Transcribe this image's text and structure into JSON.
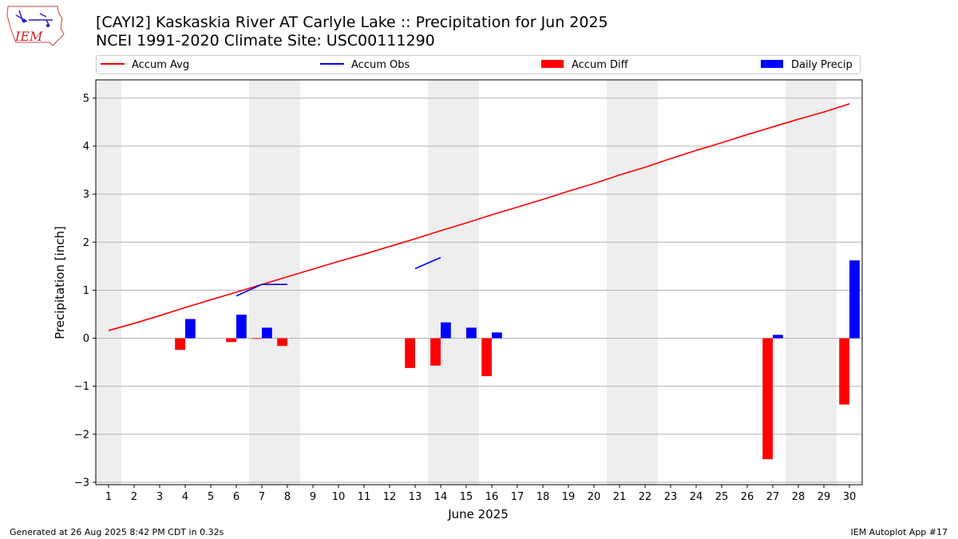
{
  "header": {
    "title_line1": "[CAYI2] Kaskaskia River  AT Carlyle Lake :: Precipitation for Jun 2025",
    "title_line2": "NCEI 1991-2020 Climate Site: USC00111290",
    "logo_text": "IEM"
  },
  "footer": {
    "left": "Generated at 26 Aug 2025 8:42 PM CDT in 0.32s",
    "right": "IEM Autoplot App #17"
  },
  "legend": [
    {
      "label": "Accum Avg",
      "kind": "line",
      "color": "#ff0000"
    },
    {
      "label": "Accum Obs",
      "kind": "line",
      "color": "#0000ff"
    },
    {
      "label": "Accum Diff",
      "kind": "box",
      "color": "#ff0000"
    },
    {
      "label": "Daily Precip",
      "kind": "box",
      "color": "#0000ff"
    }
  ],
  "chart_data": {
    "type": "bar",
    "title": "[CAYI2] Kaskaskia River  AT Carlyle Lake :: Precipitation for Jun 2025",
    "subtitle": "NCEI 1991-2020 Climate Site: USC00111290",
    "xlabel": "June 2025",
    "ylabel": "Precipitation [inch]",
    "xlim": [
      0.5,
      30.5
    ],
    "ylim": [
      -3.05,
      5.38
    ],
    "x": [
      1,
      2,
      3,
      4,
      5,
      6,
      7,
      8,
      9,
      10,
      11,
      12,
      13,
      14,
      15,
      16,
      17,
      18,
      19,
      20,
      21,
      22,
      23,
      24,
      25,
      26,
      27,
      28,
      29,
      30
    ],
    "yticks": [
      -3,
      -2,
      -1,
      0,
      1,
      2,
      3,
      4,
      5
    ],
    "ytick_labels": [
      "−3",
      "−2",
      "−1",
      "0",
      "1",
      "2",
      "3",
      "4",
      "5"
    ],
    "grid": "horizontal",
    "legend_position": "top",
    "weekend_shading_ranges": [
      [
        0.5,
        1.5
      ],
      [
        6.5,
        8.5
      ],
      [
        13.5,
        15.5
      ],
      [
        20.5,
        22.5
      ],
      [
        27.5,
        29.5
      ]
    ],
    "series": [
      {
        "name": "Accum Avg",
        "kind": "line",
        "color": "#ff0000",
        "values": [
          0.16,
          0.31,
          0.47,
          0.64,
          0.8,
          0.96,
          1.12,
          1.28,
          1.44,
          1.6,
          1.75,
          1.91,
          2.07,
          2.24,
          2.4,
          2.57,
          2.73,
          2.89,
          3.06,
          3.22,
          3.4,
          3.56,
          3.74,
          3.91,
          4.07,
          4.24,
          4.4,
          4.56,
          4.71,
          4.88
        ]
      },
      {
        "name": "Accum Obs",
        "kind": "line",
        "color": "#0000ff",
        "segments": [
          {
            "x": [
              6,
              7,
              8
            ],
            "y": [
              0.88,
              1.12,
              1.12
            ]
          },
          {
            "x": [
              13,
              14
            ],
            "y": [
              1.45,
              1.68
            ]
          }
        ]
      },
      {
        "name": "Accum Diff",
        "kind": "bar",
        "color": "#ff0000",
        "offset": -0.2,
        "points": [
          [
            4,
            -0.24
          ],
          [
            6,
            -0.08
          ],
          [
            7,
            -0.01
          ],
          [
            8,
            -0.16
          ],
          [
            13,
            -0.62
          ],
          [
            14,
            -0.57
          ],
          [
            16,
            -0.79
          ],
          [
            27,
            -2.52
          ],
          [
            30,
            -1.38
          ]
        ]
      },
      {
        "name": "Daily Precip",
        "kind": "bar",
        "color": "#0000ff",
        "offset": 0.2,
        "points": [
          [
            4,
            0.4
          ],
          [
            6,
            0.49
          ],
          [
            7,
            0.22
          ],
          [
            14,
            0.33
          ],
          [
            15,
            0.22
          ],
          [
            16,
            0.12
          ],
          [
            27,
            0.07
          ],
          [
            30,
            1.62
          ]
        ]
      }
    ]
  }
}
